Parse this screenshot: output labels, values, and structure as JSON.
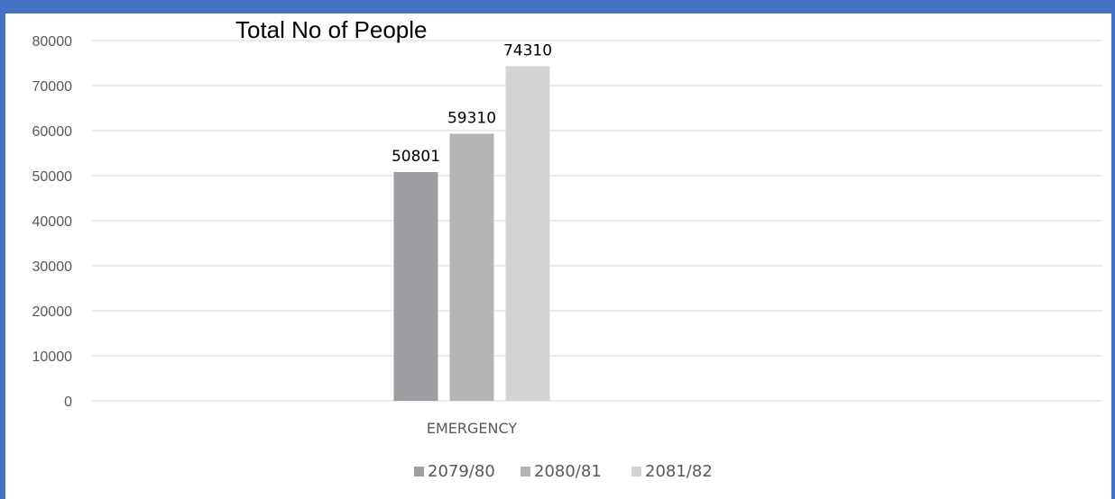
{
  "colors": {
    "frame": "#4472c4",
    "grid": "#d9d9d9",
    "tick_text": "#595959",
    "series": [
      "#9d9ea1",
      "#b3b4b6",
      "#d2d3d5"
    ]
  },
  "chart_data": {
    "type": "bar",
    "title": "Total No of People",
    "xlabel": "",
    "ylabel": "",
    "categories": [
      "EMERGENCY"
    ],
    "series": [
      {
        "name": "2079/80",
        "values": [
          50801
        ]
      },
      {
        "name": "2080/81",
        "values": [
          59310
        ]
      },
      {
        "name": "2081/82",
        "values": [
          74310
        ]
      }
    ],
    "ylim": [
      0,
      80000
    ],
    "yticks": [
      0,
      10000,
      20000,
      30000,
      40000,
      50000,
      60000,
      70000,
      80000
    ],
    "grid": true,
    "legend": "bottom",
    "data_labels": true
  }
}
